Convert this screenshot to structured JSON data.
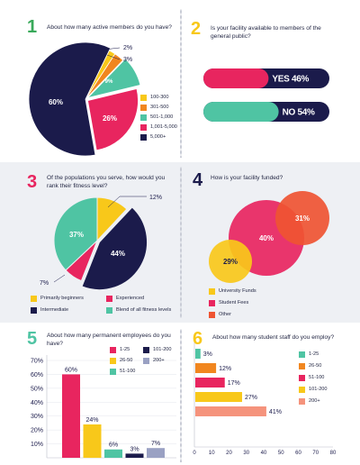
{
  "colors": {
    "navy": "#1b1b4b",
    "pink": "#e8255f",
    "yellow": "#f8c81a",
    "orange": "#f1861f",
    "teal": "#4fc4a3",
    "red": "#ef5432",
    "blueGray": "#9aa1c3",
    "salmon": "#f5937c",
    "green": "#39a95a",
    "blue": "#2b7fc1",
    "lightGray": "#eef0f4"
  },
  "panel1": {
    "number": "1",
    "question": "About how many active members do you have?",
    "chart_data": {
      "type": "pie",
      "slices": [
        {
          "label": "100-300",
          "value": 2,
          "text": "2%"
        },
        {
          "label": "301-500",
          "value": 3,
          "text": "3%"
        },
        {
          "label": "501-1,000",
          "value": 9,
          "text": "9%"
        },
        {
          "label": "1,001-5,000",
          "value": 26,
          "text": "26%"
        },
        {
          "label": "5,000+",
          "value": 60,
          "text": "60%"
        }
      ],
      "legend": [
        "100-300",
        "301-500",
        "501-1,000",
        "1,001-5,000",
        "5,000+"
      ]
    }
  },
  "panel2": {
    "number": "2",
    "question": "Is your facility available to members of the general public?",
    "chart_data": {
      "type": "bar",
      "orientation": "horizontal",
      "categories": [
        "YES",
        "NO"
      ],
      "values": [
        46,
        54
      ],
      "labels": [
        "YES 46%",
        "NO 54%"
      ]
    }
  },
  "panel3": {
    "number": "3",
    "question": "Of the populations you serve, how would you rank their fitness level?",
    "chart_data": {
      "type": "pie",
      "slices": [
        {
          "label": "Primarily beginners",
          "value": 12,
          "text": "12%"
        },
        {
          "label": "Intermediate",
          "value": 44,
          "text": "44%"
        },
        {
          "label": "Experienced",
          "value": 7,
          "text": "7%"
        },
        {
          "label": "Blend of all fitness levels",
          "value": 37,
          "text": "37%"
        }
      ],
      "legend": [
        "Primarily beginners",
        "Experienced",
        "Intermediate",
        "Blend of all fitness levels"
      ]
    }
  },
  "panel4": {
    "number": "4",
    "question": "How is your facility funded?",
    "chart_data": {
      "type": "bubble",
      "bubbles": [
        {
          "label": "Student Fees",
          "value": 40,
          "text": "40%"
        },
        {
          "label": "Other",
          "value": 31,
          "text": "31%"
        },
        {
          "label": "University Funds",
          "value": 29,
          "text": "29%"
        }
      ],
      "legend": [
        "University Funds",
        "Student Fees",
        "Other"
      ]
    }
  },
  "panel5": {
    "number": "5",
    "question": "About how many permanent employees do you have?",
    "chart_data": {
      "type": "bar",
      "categories": [
        "1-25",
        "26-50",
        "51-100",
        "101-200",
        "200+"
      ],
      "values": [
        60,
        24,
        6,
        3,
        7
      ],
      "labels": [
        "60%",
        "24%",
        "6%",
        "3%",
        "7%"
      ],
      "yticks": [
        "10%",
        "20%",
        "30%",
        "40%",
        "50%",
        "60%",
        "70%"
      ],
      "ylim": [
        0,
        70
      ],
      "legend": [
        "1-25",
        "101-200",
        "26-50",
        "200+",
        "51-100"
      ]
    }
  },
  "panel6": {
    "number": "6",
    "question": "About how many student staff do you employ?",
    "chart_data": {
      "type": "bar",
      "orientation": "horizontal",
      "categories": [
        "1-25",
        "26-50",
        "51-100",
        "101-200",
        "200+"
      ],
      "values": [
        3,
        12,
        17,
        27,
        41
      ],
      "labels": [
        "3%",
        "12%",
        "17%",
        "27%",
        "41%"
      ],
      "xticks": [
        "0",
        "10",
        "20",
        "30",
        "40",
        "50",
        "60",
        "70",
        "80"
      ],
      "xlim": [
        0,
        80
      ],
      "legend": [
        "1-25",
        "26-50",
        "51-100",
        "101-200",
        "200+"
      ]
    }
  }
}
